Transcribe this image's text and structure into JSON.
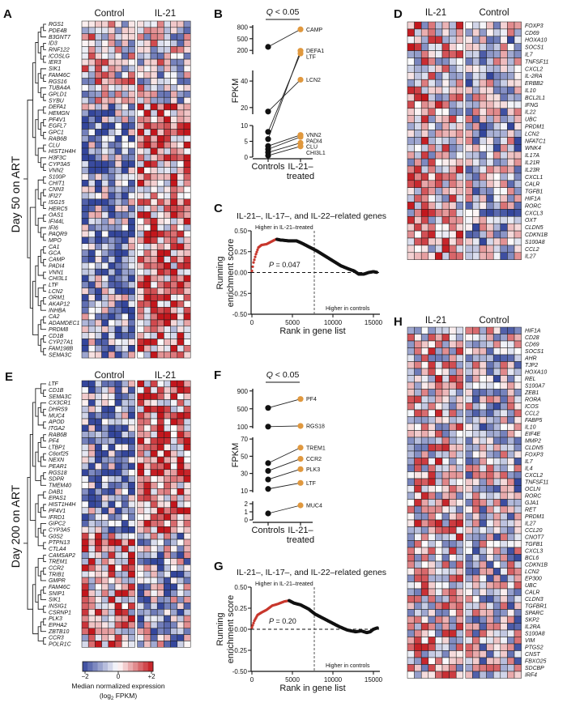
{
  "panels": {
    "A": "A",
    "B": "B",
    "C": "C",
    "D": "D",
    "E": "E",
    "F": "F",
    "G": "G",
    "H": "H"
  },
  "heatmap_A": {
    "side_label": "Day 50 on ART",
    "groups": [
      "Control",
      "IL-21"
    ],
    "genes": [
      "RGS1",
      "PDE4B",
      "B3GNT7",
      "ID3",
      "RNF122",
      "ICOSLG",
      "IER3",
      "SIK1",
      "FAM46C",
      "RGS16",
      "TUBA4A",
      "GPLD1",
      "SYBU",
      "DEFA1",
      "HEMGN",
      "PF4V1",
      "EGFL7",
      "GPC1",
      "RAB6B",
      "CLU",
      "HIST1H4H",
      "H3F3C",
      "CYP3A5",
      "VNN2",
      "S100P",
      "CHIT1",
      "CNN3",
      "IFI27",
      "ISG15",
      "HERC5",
      "OAS1",
      "IFI44L",
      "IFI6",
      "PAQR9",
      "MPO",
      "CA1",
      "GCA",
      "CAMP",
      "PADI4",
      "VNN1",
      "CHI3L1",
      "LTF",
      "LCN2",
      "ORM1",
      "AKAP12",
      "INHBA",
      "CA2",
      "ADAMDEC1",
      "PRDM8",
      "CD1B",
      "CYP27A1",
      "FAM198B",
      "SEMA3C"
    ]
  },
  "heatmap_D": {
    "groups": [
      "IL-21",
      "Control"
    ],
    "genes": [
      "FOXP3",
      "CD69",
      "HOXA10",
      "SOCS1",
      "IL7",
      "TNFSF11",
      "CXCL2",
      "IL-2RA",
      "ERBB2",
      "IL10",
      "BCL2L1",
      "IFNG",
      "IL22",
      "UBC",
      "PRDM1",
      "LCN2",
      "NFATC1",
      "WNK4",
      "IL17A",
      "IL21R",
      "IL23R",
      "CXCL1",
      "CALR",
      "TGFB1",
      "HIF1A",
      "RORC",
      "CXCL3",
      "OXT",
      "CLDN5",
      "CDKN1B",
      "S100A8",
      "CCL2",
      "IL27"
    ]
  },
  "heatmap_E": {
    "side_label": "Day 200 on ART",
    "groups": [
      "Control",
      "IL-21"
    ],
    "genes": [
      "LTF",
      "CD1B",
      "SEMA3C",
      "CX3CR1",
      "DHRS9",
      "MUC4",
      "APOD",
      "ITGA2",
      "RAB6B",
      "PF4",
      "LTBP1",
      "C6orf25",
      "NEXN",
      "PEAR1",
      "RGS18",
      "SDPR",
      "TMEM40",
      "DAB1",
      "EPAS1",
      "HIST1H4H",
      "PF4V1",
      "IFRD1",
      "GIPC2",
      "CYP3A5",
      "G0S2",
      "PTPN13",
      "CTLA4",
      "CAMSAP2",
      "TREM1",
      "CCR2",
      "TRIB1",
      "GMPR",
      "FAM46C",
      "SNIP1",
      "SIK1",
      "INSIG1",
      "CSRNP1",
      "PLK3",
      "EPHA2",
      "ZBTB10",
      "CCR3",
      "POLR1C"
    ]
  },
  "heatmap_H": {
    "groups": [
      "IL-21",
      "Control"
    ],
    "genes": [
      "HIF1A",
      "CD28",
      "CD69",
      "SOCS1",
      "AHR",
      "TJP2",
      "HOXA10",
      "REL",
      "S100A7",
      "ZEB1",
      "RORA",
      "ICOS",
      "CCL2",
      "FABP5",
      "IL10",
      "EIF4E",
      "MMP2",
      "CLDN5",
      "FOXP3",
      "IL7",
      "IL4",
      "CXCL2",
      "TNFSF11",
      "OCLN",
      "RORC",
      "GJA1",
      "RET",
      "PRDM1",
      "IL27",
      "CCL20",
      "CNOT7",
      "TGFB1",
      "CXCL3",
      "BCL6",
      "CDKN1B",
      "LCN2",
      "EP300",
      "UBC",
      "CALR",
      "CLDN3",
      "TGFBR1",
      "SPARC",
      "SKP2",
      "IL2RA",
      "S100A8",
      "VIM",
      "PTGS2",
      "CNST",
      "FBXO25",
      "SDCBP",
      "IRF4"
    ]
  },
  "colorbar": {
    "ticks": [
      "−2",
      "0",
      "+2"
    ],
    "tick_values": [
      -2,
      0,
      2
    ],
    "label_line1": "Median normalized expression",
    "label_line2_main": "(log",
    "label_line2_sub": "2",
    "label_line2_end": " FPKM)",
    "low_color": "#34469c",
    "mid_color": "#ffffff",
    "high_color": "#c3161c"
  },
  "chart_data": [
    {
      "panel": "B",
      "type": "line",
      "annotation": "Q < 0.05",
      "annotation_italic": "Q",
      "annotation_rest": " < 0.05",
      "ylabel": "FPKM",
      "categories": [
        "Controls",
        "IL-21–treated"
      ],
      "category_lines": [
        [
          "Controls"
        ],
        [
          "IL-21–",
          "treated"
        ]
      ],
      "y_segments": [
        [
          0,
          10
        ],
        [
          15,
          48
        ],
        [
          100,
          850
        ]
      ],
      "yticks": [
        0,
        5,
        10,
        20,
        40,
        200,
        500,
        800
      ],
      "colors": {
        "controls": "#111111",
        "treated": "#e0983e"
      },
      "series": [
        {
          "name": "CAMP",
          "values": [
            290,
            740
          ]
        },
        {
          "name": "DEFA1",
          "values": [
            5.7,
            190
          ]
        },
        {
          "name": "LTF",
          "values": [
            8,
            120
          ]
        },
        {
          "name": "LCN2",
          "values": [
            17,
            41
          ]
        },
        {
          "name": "VNN2",
          "values": [
            3.5,
            7
          ]
        },
        {
          "name": "PADI4",
          "values": [
            2.5,
            6.4
          ]
        },
        {
          "name": "CLU",
          "values": [
            1.5,
            4.5
          ]
        },
        {
          "name": "CHI3L1",
          "values": [
            0.5,
            3.4
          ]
        }
      ]
    },
    {
      "panel": "C",
      "type": "scatter",
      "title": "IL-21–, IL-17–, and IL-22–related genes",
      "xlabel": "Rank in gene list",
      "ylabel_lines": [
        "Running",
        "enrichment score"
      ],
      "xlim": [
        0,
        16000
      ],
      "ylim": [
        -0.5,
        0.5
      ],
      "xticks": [
        "0",
        "5000",
        "10000",
        "15000"
      ],
      "yticks": [
        "0.50",
        "0.25",
        "0.00",
        "-0.25",
        "-0.50"
      ],
      "annotation_top": "Higher in IL-21–treated",
      "annotation_bottom": "Higher in controls",
      "p_symbol": "P",
      "p_text": " = 0.047",
      "threshold_rank": 7700,
      "leading_edge_end": 3000,
      "colors": {
        "leading_edge": "#c8372d",
        "rest": "#111111"
      },
      "curve": [
        [
          0,
          0.02
        ],
        [
          200,
          0.12
        ],
        [
          500,
          0.22
        ],
        [
          800,
          0.3
        ],
        [
          1200,
          0.33
        ],
        [
          1800,
          0.34
        ],
        [
          2400,
          0.37
        ],
        [
          3000,
          0.4
        ],
        [
          3500,
          0.39
        ],
        [
          4500,
          0.38
        ],
        [
          5500,
          0.38
        ],
        [
          6200,
          0.35
        ],
        [
          7000,
          0.31
        ],
        [
          8000,
          0.26
        ],
        [
          9000,
          0.2
        ],
        [
          10000,
          0.14
        ],
        [
          11000,
          0.08
        ],
        [
          12000,
          0.04
        ],
        [
          12600,
          0.02
        ],
        [
          13200,
          -0.02
        ],
        [
          13800,
          -0.02
        ],
        [
          14400,
          0.0
        ],
        [
          15000,
          0.01
        ],
        [
          15500,
          0.0
        ]
      ]
    },
    {
      "panel": "F",
      "type": "line",
      "annotation_italic": "Q",
      "annotation_rest": " < 0.05",
      "ylabel": "FPKM",
      "categories": [
        "Controls",
        "IL-21–treated"
      ],
      "category_lines": [
        [
          "Controls"
        ],
        [
          "IL-21–",
          "treated"
        ]
      ],
      "y_segments": [
        [
          0,
          2.3
        ],
        [
          8,
          72
        ],
        [
          60,
          950
        ]
      ],
      "yticks": [
        0,
        1,
        2,
        10,
        30,
        50,
        70,
        100,
        500,
        900
      ],
      "colors": {
        "controls": "#111111",
        "treated": "#e0983e"
      },
      "series": [
        {
          "name": "PF4",
          "values": [
            520,
            720
          ]
        },
        {
          "name": "RGS18",
          "values": [
            100,
            115
          ]
        },
        {
          "name": "TREM1",
          "values": [
            42,
            60
          ]
        },
        {
          "name": "CCR2",
          "values": [
            33,
            47
          ]
        },
        {
          "name": "PLK3",
          "values": [
            23,
            35
          ]
        },
        {
          "name": "LTF",
          "values": [
            12,
            19
          ]
        },
        {
          "name": "MUC4",
          "values": [
            0.8,
            1.8
          ]
        }
      ]
    },
    {
      "panel": "G",
      "type": "scatter",
      "title": "IL-21–, IL-17–, and IL-22–related genes",
      "xlabel": "Rank in gene list",
      "ylabel_lines": [
        "Running",
        "enrichment score"
      ],
      "xlim": [
        0,
        16000
      ],
      "ylim": [
        -0.5,
        0.5
      ],
      "xticks": [
        "0",
        "5000",
        "10000",
        "15000"
      ],
      "yticks": [
        "0.50",
        "0.25",
        "0.00",
        "-0.25",
        "-0.50"
      ],
      "annotation_top": "Higher in IL-21–treated",
      "annotation_bottom": "Higher in controls",
      "p_symbol": "P",
      "p_text": " = 0.20",
      "threshold_rank": 7700,
      "leading_edge_end": 4500,
      "colors": {
        "leading_edge": "#c8372d",
        "rest": "#111111"
      },
      "curve": [
        [
          0,
          0.02
        ],
        [
          300,
          0.1
        ],
        [
          700,
          0.17
        ],
        [
          1200,
          0.2
        ],
        [
          1800,
          0.23
        ],
        [
          2500,
          0.28
        ],
        [
          3200,
          0.3
        ],
        [
          4000,
          0.33
        ],
        [
          4600,
          0.34
        ],
        [
          5200,
          0.31
        ],
        [
          6000,
          0.29
        ],
        [
          7000,
          0.24
        ],
        [
          7800,
          0.18
        ],
        [
          8800,
          0.13
        ],
        [
          9800,
          0.08
        ],
        [
          10800,
          0.03
        ],
        [
          11800,
          -0.01
        ],
        [
          12800,
          -0.03
        ],
        [
          13500,
          -0.02
        ],
        [
          14200,
          -0.04
        ],
        [
          14600,
          -0.03
        ],
        [
          15000,
          0.0
        ],
        [
          15600,
          0.02
        ]
      ]
    }
  ]
}
